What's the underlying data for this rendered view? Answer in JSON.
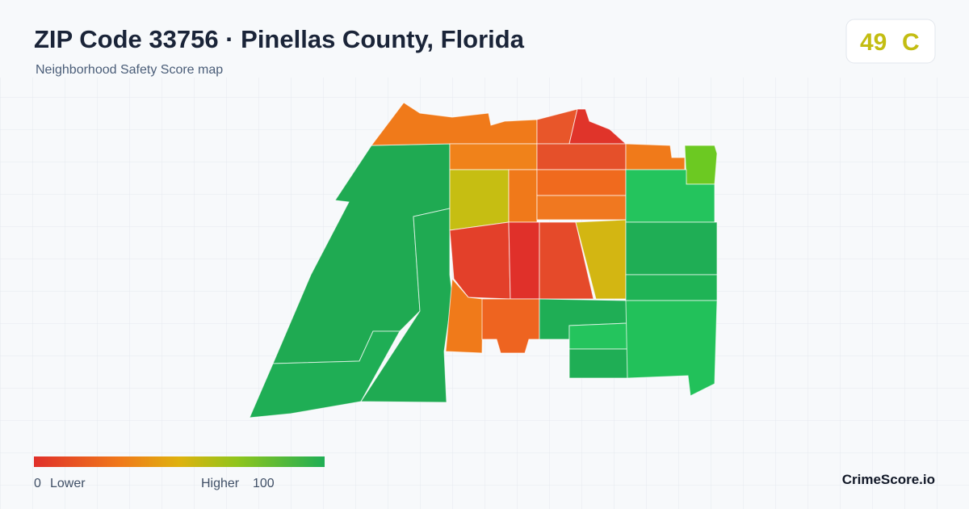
{
  "header": {
    "title": "ZIP Code 33756 · Pinellas County, Florida",
    "subtitle": "Neighborhood Safety Score map"
  },
  "score": {
    "value": "49",
    "grade": "C"
  },
  "legend": {
    "min": "0",
    "min_label": "Lower",
    "max_label": "Higher",
    "max": "100"
  },
  "brand": "CrimeScore.io"
}
